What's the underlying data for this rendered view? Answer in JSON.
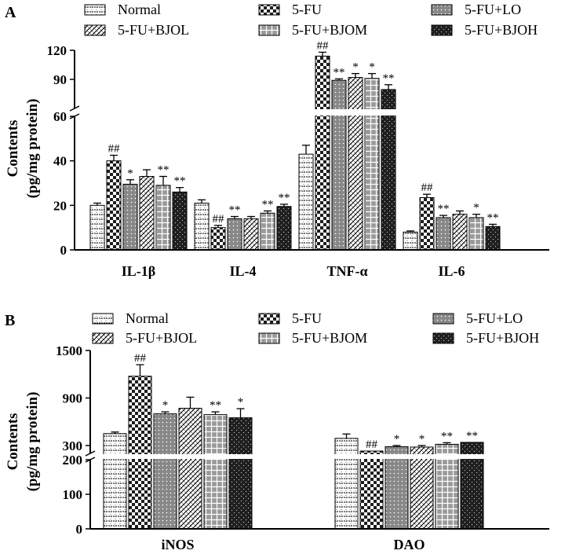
{
  "chart_data": [
    {
      "type": "bar",
      "panel_label": "A",
      "ylabel_line1": "Contents",
      "ylabel_line2": "(pg/mg protein)",
      "categories": [
        "IL-1β",
        "IL-4",
        "TNF-α",
        "IL-6"
      ],
      "axis_break": {
        "lower": [
          0,
          60
        ],
        "upper": [
          60,
          120
        ]
      },
      "lower_ticks": [
        0,
        20,
        40,
        60
      ],
      "upper_ticks": [
        90,
        120
      ],
      "series": [
        {
          "name": "Normal",
          "values": [
            20,
            21,
            43,
            8
          ],
          "errors": [
            1,
            1.5,
            4,
            0.5
          ],
          "marks": [
            "",
            "",
            "",
            ""
          ]
        },
        {
          "name": "5-FU",
          "values": [
            40,
            10,
            114,
            23.5
          ],
          "errors": [
            2.5,
            1,
            4,
            1.5
          ],
          "marks": [
            "##",
            "##",
            "##",
            "##"
          ]
        },
        {
          "name": "5-FU+LO",
          "values": [
            29.5,
            14,
            89,
            14.5
          ],
          "errors": [
            2,
            1,
            1.5,
            1
          ],
          "marks": [
            "*",
            "**",
            "**",
            "**"
          ]
        },
        {
          "name": "5-FU+BJOL",
          "values": [
            33,
            14,
            92,
            16
          ],
          "errors": [
            3,
            1,
            4,
            1.5
          ],
          "marks": [
            "",
            "",
            "*",
            ""
          ]
        },
        {
          "name": "5-FU+BJOM",
          "values": [
            29,
            16.5,
            91,
            14.5
          ],
          "errors": [
            4,
            1,
            5,
            1.5
          ],
          "marks": [
            "**",
            "**",
            "*",
            "*"
          ]
        },
        {
          "name": "5-FU+BJOH",
          "values": [
            26,
            19.5,
            79.5,
            10.5
          ],
          "errors": [
            2,
            1,
            5,
            1
          ],
          "marks": [
            "**",
            "**",
            "**",
            "**"
          ]
        }
      ]
    },
    {
      "type": "bar",
      "panel_label": "B",
      "ylabel_line1": "Contents",
      "ylabel_line2": "(pg/mg protein)",
      "categories": [
        "iNOS",
        "DAO"
      ],
      "axis_break": {
        "lower": [
          0,
          200
        ],
        "upper": [
          200,
          1500
        ]
      },
      "lower_ticks": [
        0,
        100,
        200
      ],
      "upper_ticks": [
        300,
        900,
        1500
      ],
      "series": [
        {
          "name": "Normal",
          "values": [
            450,
            390
          ],
          "errors": [
            20,
            55
          ],
          "marks": [
            "",
            ""
          ]
        },
        {
          "name": "5-FU",
          "values": [
            1175,
            230
          ],
          "errors": [
            145,
            0
          ],
          "marks": [
            "##",
            "##"
          ]
        },
        {
          "name": "5-FU+LO",
          "values": [
            700,
            285
          ],
          "errors": [
            25,
            15
          ],
          "marks": [
            "*",
            "*"
          ]
        },
        {
          "name": "5-FU+BJOL",
          "values": [
            770,
            280
          ],
          "errors": [
            140,
            20
          ],
          "marks": [
            "",
            "*"
          ]
        },
        {
          "name": "5-FU+BJOM",
          "values": [
            690,
            315
          ],
          "errors": [
            35,
            20
          ],
          "marks": [
            "**",
            "**"
          ]
        },
        {
          "name": "5-FU+BJOH",
          "values": [
            650,
            340
          ],
          "errors": [
            115,
            0
          ],
          "marks": [
            "*",
            "**"
          ]
        }
      ]
    }
  ],
  "colors": {
    "axis": "#000000",
    "light": "#ffffff",
    "medium": "#7f7f7f",
    "dark": "#2a2a2a"
  }
}
